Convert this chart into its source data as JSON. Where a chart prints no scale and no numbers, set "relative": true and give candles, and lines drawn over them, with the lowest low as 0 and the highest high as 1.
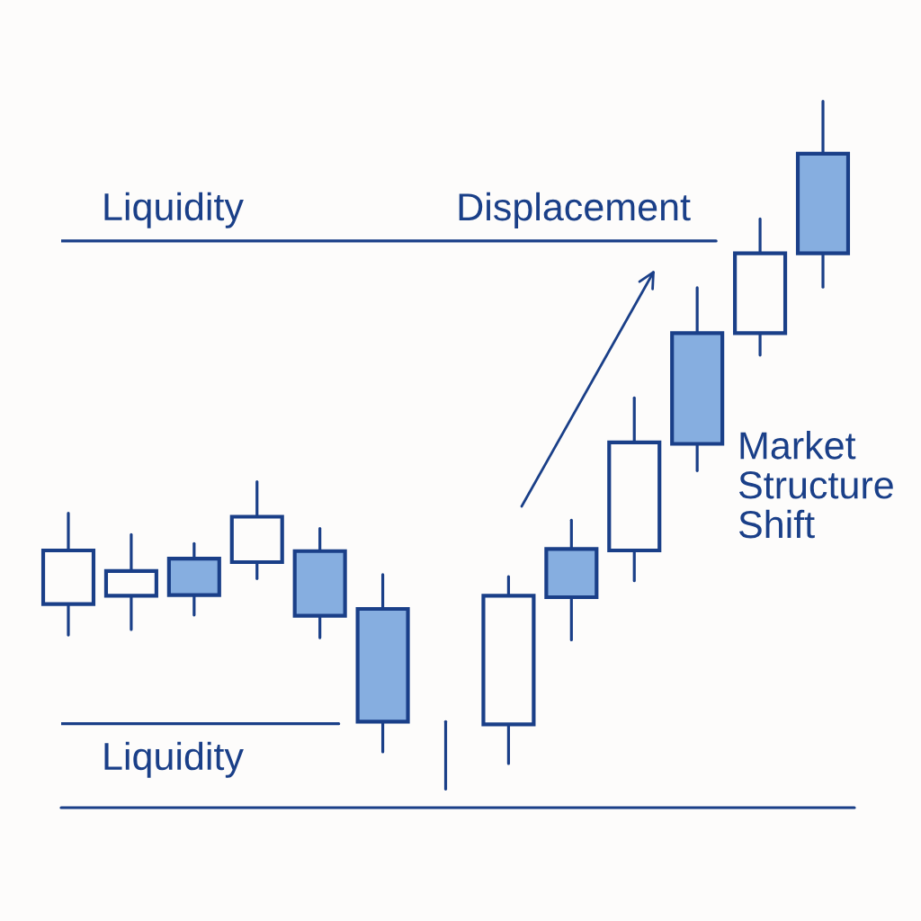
{
  "chart_data": {
    "type": "candlestick",
    "relative": true,
    "categories": [
      null,
      null,
      null,
      null,
      null,
      null,
      null,
      null,
      null,
      null,
      null,
      null,
      null
    ],
    "ohlc": [
      [
        0.269,
        0.401,
        0.224,
        0.347
      ],
      [
        0.281,
        0.37,
        0.232,
        0.317
      ],
      [
        0.335,
        0.357,
        0.253,
        0.282
      ],
      [
        0.33,
        0.447,
        0.306,
        0.396
      ],
      [
        0.346,
        0.379,
        0.22,
        0.252
      ],
      [
        0.262,
        0.312,
        0.054,
        0.098
      ],
      [
        0.098,
        0.098,
        0,
        0.098
      ],
      [
        0.094,
        0.309,
        0.037,
        0.281
      ],
      [
        0.349,
        0.391,
        0.217,
        0.279
      ],
      [
        0.347,
        0.569,
        0.303,
        0.504
      ],
      [
        0.663,
        0.729,
        0.463,
        0.502
      ],
      [
        0.663,
        0.829,
        0.631,
        0.779
      ],
      [
        0.924,
        1,
        0.73,
        0.779
      ]
    ],
    "color": "#1a3f88",
    "colors": [
      "#fdfcfb",
      "#fdfcfb",
      "#86aee0",
      "#fdfcfb",
      "#86aee0",
      "#86aee0",
      null,
      "#fdfcfb",
      "#86aee0",
      "#fdfcfb",
      "#86aee0",
      "#fdfcfb",
      "#86aee0"
    ],
    "ref_lines": [
      {
        "axis": "y",
        "value": 0.797,
        "label": "Liquidity"
      },
      {
        "axis": "y",
        "value": 0.095,
        "label": "Liquidity"
      }
    ],
    "annotations": [
      "Displacement",
      "Market\nStructure\nShift"
    ]
  }
}
